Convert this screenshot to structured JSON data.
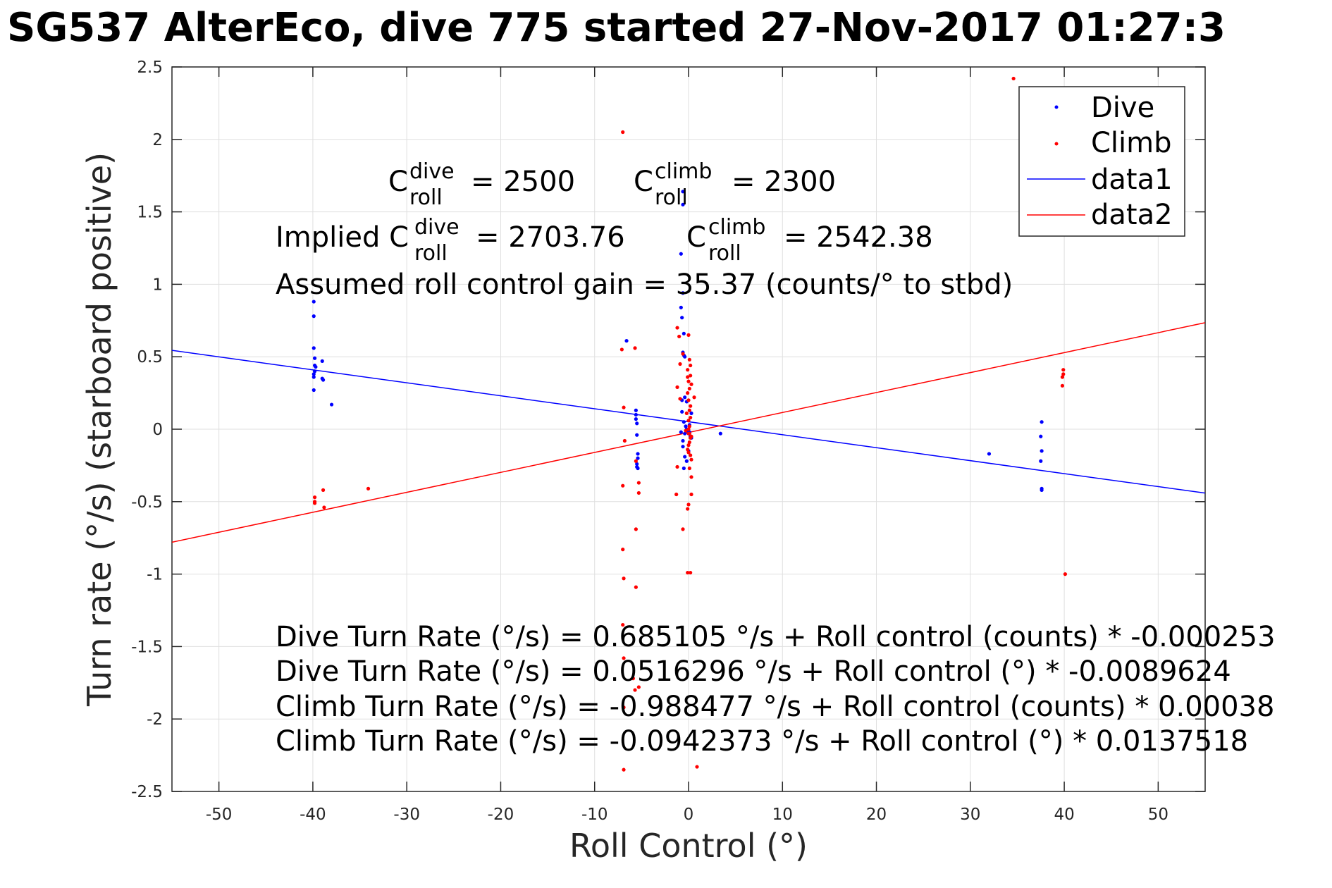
{
  "chart_data": {
    "type": "scatter",
    "title": "SG537 AlterEco, dive 775 started 27-Nov-2017 01:27:3",
    "xlabel": "Roll Control (°)",
    "ylabel": "Turn rate (°/s) (starboard positive)",
    "xlim": [
      -55,
      55
    ],
    "ylim": [
      -2.5,
      2.5
    ],
    "xticks": [
      -50,
      -40,
      -30,
      -20,
      -10,
      0,
      10,
      20,
      30,
      40,
      50
    ],
    "yticks": [
      -2.5,
      -2,
      -1.5,
      -1,
      -0.5,
      0,
      0.5,
      1,
      1.5,
      2,
      2.5
    ],
    "grid": true,
    "legend_position": "top-right",
    "series": [
      {
        "name": "Dive",
        "kind": "points",
        "color": "#0000ff",
        "x": [
          -39.9,
          -39.9,
          -39.9,
          -39.8,
          -39.8,
          -39.8,
          -39.9,
          -39.9,
          -39.0,
          -39.0,
          -38.9,
          -38.0,
          -39.9,
          -39.7,
          -6.6,
          -5.6,
          -5.6,
          -5.6,
          -5.5,
          -5.5,
          -5.4,
          -5.4,
          -5.5,
          -5.5,
          -5.4,
          -0.6,
          -0.6,
          -0.8,
          -0.6,
          -0.8,
          -0.7,
          -0.5,
          -0.6,
          -0.5,
          -0.4,
          -0.4,
          -0.7,
          -0.7,
          -0.5,
          -0.3,
          -0.2,
          -0.1,
          0.1,
          0.2,
          -0.6,
          -0.6,
          0.0,
          0.3,
          -0.2,
          -0.4,
          -0.8,
          0.3,
          0.1,
          -0.4,
          -0.2,
          -0.5,
          3.4,
          32.0,
          37.6,
          37.5,
          37.6,
          37.5,
          37.6,
          37.6
        ],
        "y": [
          0.88,
          0.78,
          0.56,
          0.49,
          0.44,
          0.4,
          0.38,
          0.36,
          0.47,
          0.35,
          0.34,
          0.17,
          0.27,
          0.43,
          0.61,
          0.13,
          0.1,
          0.07,
          0.04,
          -0.04,
          -0.17,
          -0.2,
          -0.24,
          -0.26,
          -0.27,
          1.64,
          1.55,
          1.21,
          0.94,
          0.84,
          0.77,
          0.66,
          0.53,
          0.51,
          0.5,
          0.22,
          0.2,
          0.12,
          0.05,
          0.02,
          0.0,
          -0.01,
          -0.02,
          -0.05,
          -0.08,
          -0.12,
          -0.15,
          0.11,
          0.19,
          -0.03,
          -0.02,
          -0.06,
          0.03,
          -0.19,
          -0.22,
          -0.27,
          -0.03,
          -0.17,
          0.05,
          -0.05,
          -0.15,
          -0.22,
          -0.41,
          -0.42
        ]
      },
      {
        "name": "Climb",
        "kind": "points",
        "color": "#ff0000",
        "x": [
          -39.8,
          -39.8,
          -39.8,
          -38.9,
          -38.8,
          -34.1,
          -7.0,
          -7.1,
          -6.9,
          -6.8,
          -7.0,
          -7.0,
          -6.9,
          -6.9,
          -6.9,
          -6.9,
          -7.0,
          -5.7,
          -5.6,
          -5.3,
          -5.3,
          -5.6,
          -5.6,
          -5.3,
          -5.7,
          -5.9,
          -1.2,
          -1.0,
          -0.9,
          -0.6,
          -1.2,
          -0.9,
          -1.2,
          -1.3,
          -0.6,
          0.0,
          0.1,
          0.2,
          -0.1,
          0.2,
          -0.1,
          0.0,
          0.3,
          0.1,
          -0.1,
          0.0,
          0.2,
          0.1,
          -0.2,
          0.2,
          0.0,
          0.1,
          -0.3,
          0.1,
          0.3,
          0.2,
          0.1,
          0.0,
          -0.1,
          0.0,
          0.2,
          0.3,
          0.6,
          0.1,
          0.3,
          0.3,
          0.0,
          -0.1,
          0.2,
          -0.1,
          0.9,
          0.0,
          0.0,
          34.6,
          39.9,
          39.9,
          39.8,
          39.8,
          40.1
        ],
        "y": [
          -0.47,
          -0.5,
          -0.51,
          -0.42,
          -0.54,
          -0.41,
          2.05,
          0.55,
          0.15,
          -0.08,
          -0.39,
          -0.83,
          -1.03,
          -1.58,
          -1.92,
          -2.35,
          -1.35,
          0.56,
          -0.22,
          -0.37,
          -0.44,
          -0.69,
          -1.09,
          -1.78,
          -1.8,
          -1.72,
          0.7,
          0.64,
          0.45,
          0.52,
          0.29,
          0.21,
          -0.26,
          -0.45,
          -0.69,
          0.65,
          0.48,
          0.44,
          0.41,
          0.37,
          0.36,
          0.33,
          0.31,
          0.28,
          0.25,
          0.2,
          0.16,
          0.13,
          0.11,
          0.08,
          0.06,
          0.02,
          -0.01,
          -0.03,
          -0.05,
          -0.06,
          -0.09,
          -0.11,
          -0.14,
          -0.16,
          -0.18,
          -0.21,
          0.22,
          -0.27,
          -0.33,
          -0.45,
          -0.52,
          -0.55,
          -0.99,
          -0.99,
          -2.33,
          0.0,
          -0.03,
          2.42,
          0.41,
          0.38,
          0.36,
          0.3,
          -1.0
        ]
      },
      {
        "name": "data1",
        "kind": "line",
        "color": "#0000ff",
        "x": [
          -55,
          55
        ],
        "y": [
          0.544,
          -0.441
        ]
      },
      {
        "name": "data2",
        "kind": "line",
        "color": "#ff0000",
        "x": [
          -55,
          55
        ],
        "y": [
          -0.78,
          0.735
        ]
      }
    ],
    "annotations": {
      "c_roll_dive": {
        "sup": "dive",
        "sub": "roll",
        "value": "= 2500"
      },
      "c_roll_climb": {
        "sup": "climb",
        "sub": "roll",
        "value": "= 2300"
      },
      "implied_label": "Implied C",
      "implied_dive": {
        "sup": "dive",
        "sub": "roll",
        "value": "= 2703.76"
      },
      "implied_climb": {
        "sup": "climb",
        "sub": "roll",
        "value": "= 2542.38"
      },
      "gain_line": "Assumed roll control gain = 35.37 (counts/° to stbd)",
      "equations": [
        "Dive Turn Rate (°/s) = 0.685105 °/s + Roll control (counts) * -0.000253",
        "Dive Turn Rate (°/s) = 0.0516296 °/s + Roll control (°) * -0.0089624",
        "Climb Turn Rate (°/s) = -0.988477 °/s + Roll control (counts) * 0.00038",
        "Climb Turn Rate (°/s) = -0.0942373 °/s + Roll control (°) * 0.0137518"
      ]
    }
  }
}
